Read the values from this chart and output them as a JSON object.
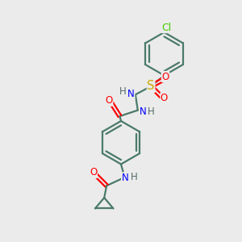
{
  "bg_color": "#ebebeb",
  "bond_color": "#4a7a6a",
  "bond_width": 1.6,
  "atom_colors": {
    "O": "#ff0000",
    "N": "#0000ff",
    "S": "#ccaa00",
    "Cl": "#44cc00",
    "H": "#556b6b",
    "C": "#4a7a6a"
  },
  "font_size": 8.5,
  "title": ""
}
